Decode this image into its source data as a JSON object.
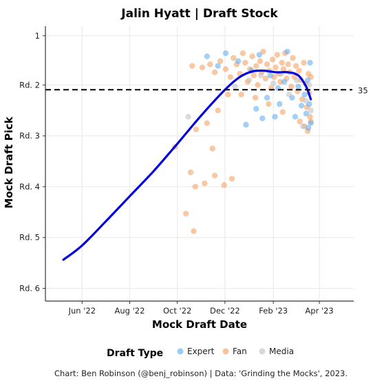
{
  "chart_data": {
    "type": "scatter",
    "title": "Jalin Hyatt | Draft Stock",
    "xlabel": "Mock Draft Date",
    "ylabel": "Mock Draft Pick",
    "caption": "Chart: Ben Robinson (@benj_robinson) | Data: 'Grinding the Mocks', 2023.",
    "x_ticks": [
      "Jun '22",
      "Aug '22",
      "Oct '22",
      "Dec '22",
      "Feb '23",
      "Apr '23"
    ],
    "x_tick_dates": [
      "2022-06-01",
      "2022-08-01",
      "2022-10-01",
      "2022-12-01",
      "2023-02-01",
      "2023-04-01"
    ],
    "xlim": [
      "2022-04-15",
      "2023-05-15"
    ],
    "y_ticks": [
      {
        "pick": 1,
        "label": "1"
      },
      {
        "pick": 32,
        "label": "Rd. 2"
      },
      {
        "pick": 64,
        "label": "Rd. 3"
      },
      {
        "pick": 96,
        "label": "Rd. 4"
      },
      {
        "pick": 128,
        "label": "Rd. 5"
      },
      {
        "pick": 160,
        "label": "Rd. 6"
      }
    ],
    "ylim": [
      168,
      -5
    ],
    "y_reversed": true,
    "grid": true,
    "hline": {
      "value": 35,
      "label": "35",
      "style": "dashed"
    },
    "legend": {
      "title": "Draft Type",
      "position": "bottom",
      "entries": [
        {
          "name": "Expert",
          "color": "#5aa9f0"
        },
        {
          "name": "Fan",
          "color": "#f39a5a"
        },
        {
          "name": "Media",
          "color": "#bdbdbd"
        }
      ]
    },
    "trend_line": {
      "color": "#0000e0",
      "points": [
        {
          "x": "2022-05-08",
          "y": 142
        },
        {
          "x": "2022-06-01",
          "y": 133
        },
        {
          "x": "2022-07-01",
          "y": 118
        },
        {
          "x": "2022-08-01",
          "y": 102
        },
        {
          "x": "2022-09-01",
          "y": 86
        },
        {
          "x": "2022-10-01",
          "y": 69
        },
        {
          "x": "2022-11-01",
          "y": 51
        },
        {
          "x": "2022-12-01",
          "y": 35
        },
        {
          "x": "2022-12-20",
          "y": 27
        },
        {
          "x": "2023-01-05",
          "y": 23.5
        },
        {
          "x": "2023-01-20",
          "y": 23
        },
        {
          "x": "2023-02-05",
          "y": 24
        },
        {
          "x": "2023-02-20",
          "y": 24
        },
        {
          "x": "2023-03-05",
          "y": 26
        },
        {
          "x": "2023-03-15",
          "y": 33
        },
        {
          "x": "2023-03-21",
          "y": 41
        }
      ]
    },
    "series": [
      {
        "name": "Fan",
        "color": "#f39a5a",
        "points": [
          {
            "x": "2022-09-28",
            "y": 71
          },
          {
            "x": "2022-10-12",
            "y": 113
          },
          {
            "x": "2022-10-22",
            "y": 124
          },
          {
            "x": "2022-10-18",
            "y": 87
          },
          {
            "x": "2022-10-24",
            "y": 96
          },
          {
            "x": "2022-11-05",
            "y": 94
          },
          {
            "x": "2022-11-15",
            "y": 72
          },
          {
            "x": "2022-11-18",
            "y": 89
          },
          {
            "x": "2022-11-30",
            "y": 95
          },
          {
            "x": "2022-12-10",
            "y": 91
          },
          {
            "x": "2022-10-25",
            "y": 60
          },
          {
            "x": "2022-11-08",
            "y": 56
          },
          {
            "x": "2022-11-22",
            "y": 48
          },
          {
            "x": "2022-12-05",
            "y": 38
          },
          {
            "x": "2022-10-20",
            "y": 20
          },
          {
            "x": "2022-11-02",
            "y": 21
          },
          {
            "x": "2022-11-12",
            "y": 19
          },
          {
            "x": "2022-11-18",
            "y": 24
          },
          {
            "x": "2022-11-25",
            "y": 17
          },
          {
            "x": "2022-12-02",
            "y": 22
          },
          {
            "x": "2022-12-08",
            "y": 27
          },
          {
            "x": "2022-12-12",
            "y": 15
          },
          {
            "x": "2022-12-16",
            "y": 19
          },
          {
            "x": "2022-12-20",
            "y": 25
          },
          {
            "x": "2022-12-24",
            "y": 12
          },
          {
            "x": "2022-12-27",
            "y": 18
          },
          {
            "x": "2022-12-30",
            "y": 30
          },
          {
            "x": "2023-01-02",
            "y": 22
          },
          {
            "x": "2023-01-05",
            "y": 14
          },
          {
            "x": "2023-01-07",
            "y": 26
          },
          {
            "x": "2023-01-10",
            "y": 20
          },
          {
            "x": "2023-01-12",
            "y": 32
          },
          {
            "x": "2023-01-15",
            "y": 17
          },
          {
            "x": "2023-01-17",
            "y": 24
          },
          {
            "x": "2023-01-19",
            "y": 11
          },
          {
            "x": "2023-01-22",
            "y": 28
          },
          {
            "x": "2023-01-24",
            "y": 19
          },
          {
            "x": "2023-01-27",
            "y": 23
          },
          {
            "x": "2023-01-29",
            "y": 34
          },
          {
            "x": "2023-01-31",
            "y": 16
          },
          {
            "x": "2023-02-02",
            "y": 27
          },
          {
            "x": "2023-02-04",
            "y": 21
          },
          {
            "x": "2023-02-06",
            "y": 13
          },
          {
            "x": "2023-02-08",
            "y": 25
          },
          {
            "x": "2023-02-10",
            "y": 30
          },
          {
            "x": "2023-02-12",
            "y": 18
          },
          {
            "x": "2023-02-14",
            "y": 22
          },
          {
            "x": "2023-02-16",
            "y": 12
          },
          {
            "x": "2023-02-18",
            "y": 28
          },
          {
            "x": "2023-02-20",
            "y": 19
          },
          {
            "x": "2023-02-22",
            "y": 24
          },
          {
            "x": "2023-02-24",
            "y": 33
          },
          {
            "x": "2023-02-26",
            "y": 15
          },
          {
            "x": "2023-02-28",
            "y": 27
          },
          {
            "x": "2023-03-02",
            "y": 20
          },
          {
            "x": "2023-03-04",
            "y": 36
          },
          {
            "x": "2023-03-06",
            "y": 23
          },
          {
            "x": "2023-03-08",
            "y": 29
          },
          {
            "x": "2023-03-10",
            "y": 41
          },
          {
            "x": "2023-03-12",
            "y": 18
          },
          {
            "x": "2023-03-14",
            "y": 31
          },
          {
            "x": "2023-03-16",
            "y": 46
          },
          {
            "x": "2023-03-18",
            "y": 25
          },
          {
            "x": "2023-03-20",
            "y": 52
          },
          {
            "x": "2023-03-13",
            "y": 58
          },
          {
            "x": "2023-03-17",
            "y": 61
          },
          {
            "x": "2023-03-07",
            "y": 55
          },
          {
            "x": "2023-02-13",
            "y": 49
          },
          {
            "x": "2023-01-26",
            "y": 44
          },
          {
            "x": "2023-01-09",
            "y": 40
          },
          {
            "x": "2022-12-22",
            "y": 38
          },
          {
            "x": "2023-03-19",
            "y": 37
          },
          {
            "x": "2023-03-21",
            "y": 27
          },
          {
            "x": "2023-03-21",
            "y": 55
          }
        ]
      },
      {
        "name": "Expert",
        "color": "#5aa9f0",
        "points": [
          {
            "x": "2022-11-08",
            "y": 14
          },
          {
            "x": "2022-11-22",
            "y": 20
          },
          {
            "x": "2022-12-02",
            "y": 12
          },
          {
            "x": "2022-12-18",
            "y": 17
          },
          {
            "x": "2022-12-28",
            "y": 57
          },
          {
            "x": "2023-01-04",
            "y": 23
          },
          {
            "x": "2023-01-10",
            "y": 47
          },
          {
            "x": "2023-01-14",
            "y": 13
          },
          {
            "x": "2023-01-18",
            "y": 53
          },
          {
            "x": "2023-01-24",
            "y": 40
          },
          {
            "x": "2023-01-28",
            "y": 26
          },
          {
            "x": "2023-02-03",
            "y": 52
          },
          {
            "x": "2023-02-07",
            "y": 34
          },
          {
            "x": "2023-02-09",
            "y": 44
          },
          {
            "x": "2023-02-15",
            "y": 30
          },
          {
            "x": "2023-02-19",
            "y": 11
          },
          {
            "x": "2023-02-25",
            "y": 40
          },
          {
            "x": "2023-03-01",
            "y": 52
          },
          {
            "x": "2023-03-05",
            "y": 33
          },
          {
            "x": "2023-03-09",
            "y": 45
          },
          {
            "x": "2023-03-13",
            "y": 38
          },
          {
            "x": "2023-03-15",
            "y": 50
          },
          {
            "x": "2023-03-17",
            "y": 29
          },
          {
            "x": "2023-03-19",
            "y": 44
          },
          {
            "x": "2023-03-20",
            "y": 18
          },
          {
            "x": "2023-03-21",
            "y": 56
          },
          {
            "x": "2023-03-18",
            "y": 59
          }
        ]
      },
      {
        "name": "Media",
        "color": "#bdbdbd",
        "points": [
          {
            "x": "2022-10-15",
            "y": 52
          },
          {
            "x": "2022-12-14",
            "y": 33
          },
          {
            "x": "2023-01-01",
            "y": 29
          },
          {
            "x": "2023-01-16",
            "y": 26
          },
          {
            "x": "2023-02-01",
            "y": 31
          },
          {
            "x": "2023-02-11",
            "y": 25
          },
          {
            "x": "2023-02-21",
            "y": 38
          },
          {
            "x": "2023-03-03",
            "y": 29
          },
          {
            "x": "2023-03-11",
            "y": 58
          },
          {
            "x": "2023-03-15",
            "y": 42
          },
          {
            "x": "2023-03-19",
            "y": 32
          },
          {
            "x": "2023-03-21",
            "y": 48
          }
        ]
      }
    ]
  }
}
